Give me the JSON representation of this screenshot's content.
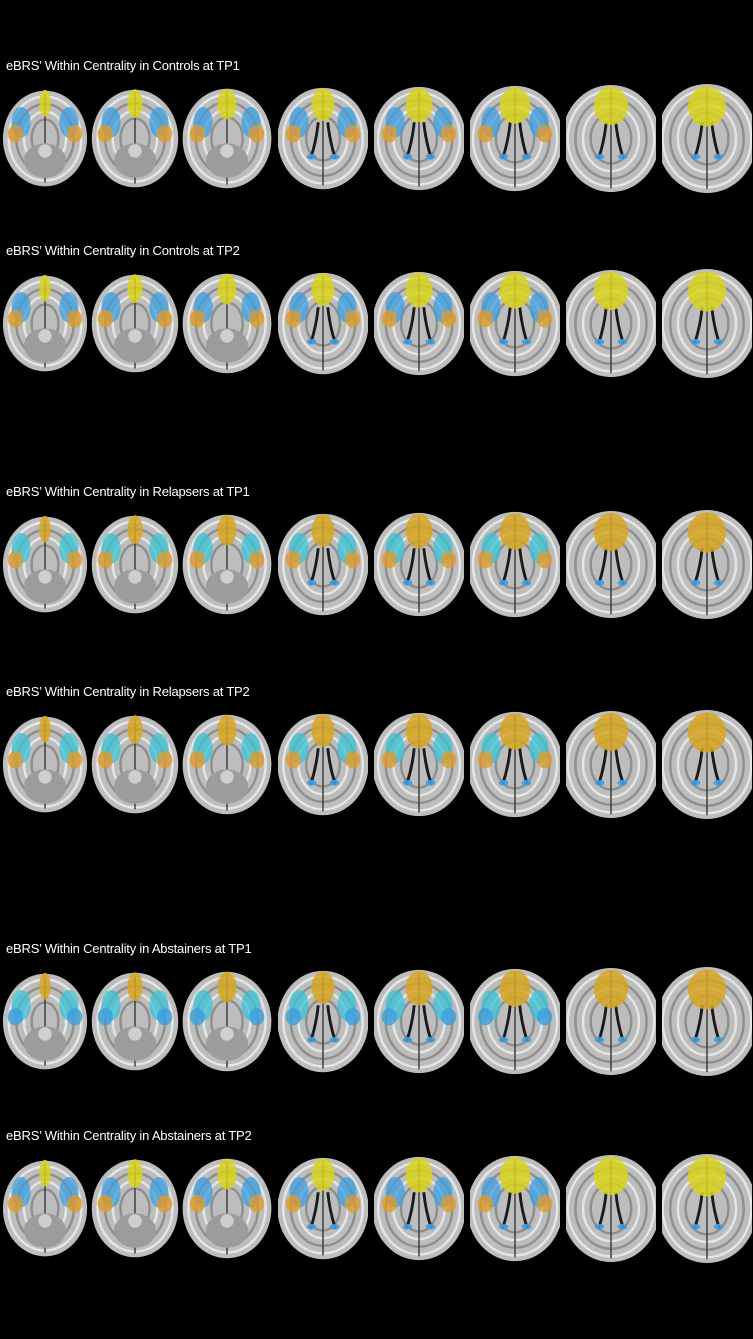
{
  "panels": [
    {
      "title": "eBRS’ Within Centrality in Controls at TP1",
      "overlay": "controls"
    },
    {
      "title": "eBRS’ Within Centrality in Controls at TP2",
      "overlay": "controls"
    },
    {
      "title": "eBRS’ Within Centrality in Relapsers at TP1",
      "overlay": "relapsers"
    },
    {
      "title": "eBRS’ Within Centrality in Relapsers at TP2",
      "overlay": "relapsers"
    },
    {
      "title": "eBRS’ Within Centrality in Abstainers at TP1",
      "overlay": "abstainers"
    },
    {
      "title": "eBRS’ Within Centrality in Abstainers at TP2",
      "overlay": "abstainers2"
    }
  ],
  "colors": {
    "background": "#000000",
    "blue": "#3b9fe0",
    "yellow": "#d8d21a",
    "orange": "#e09a2a",
    "gold": "#d6a520",
    "cyan": "#39c3d6",
    "tissue": "#bdbdbd"
  }
}
